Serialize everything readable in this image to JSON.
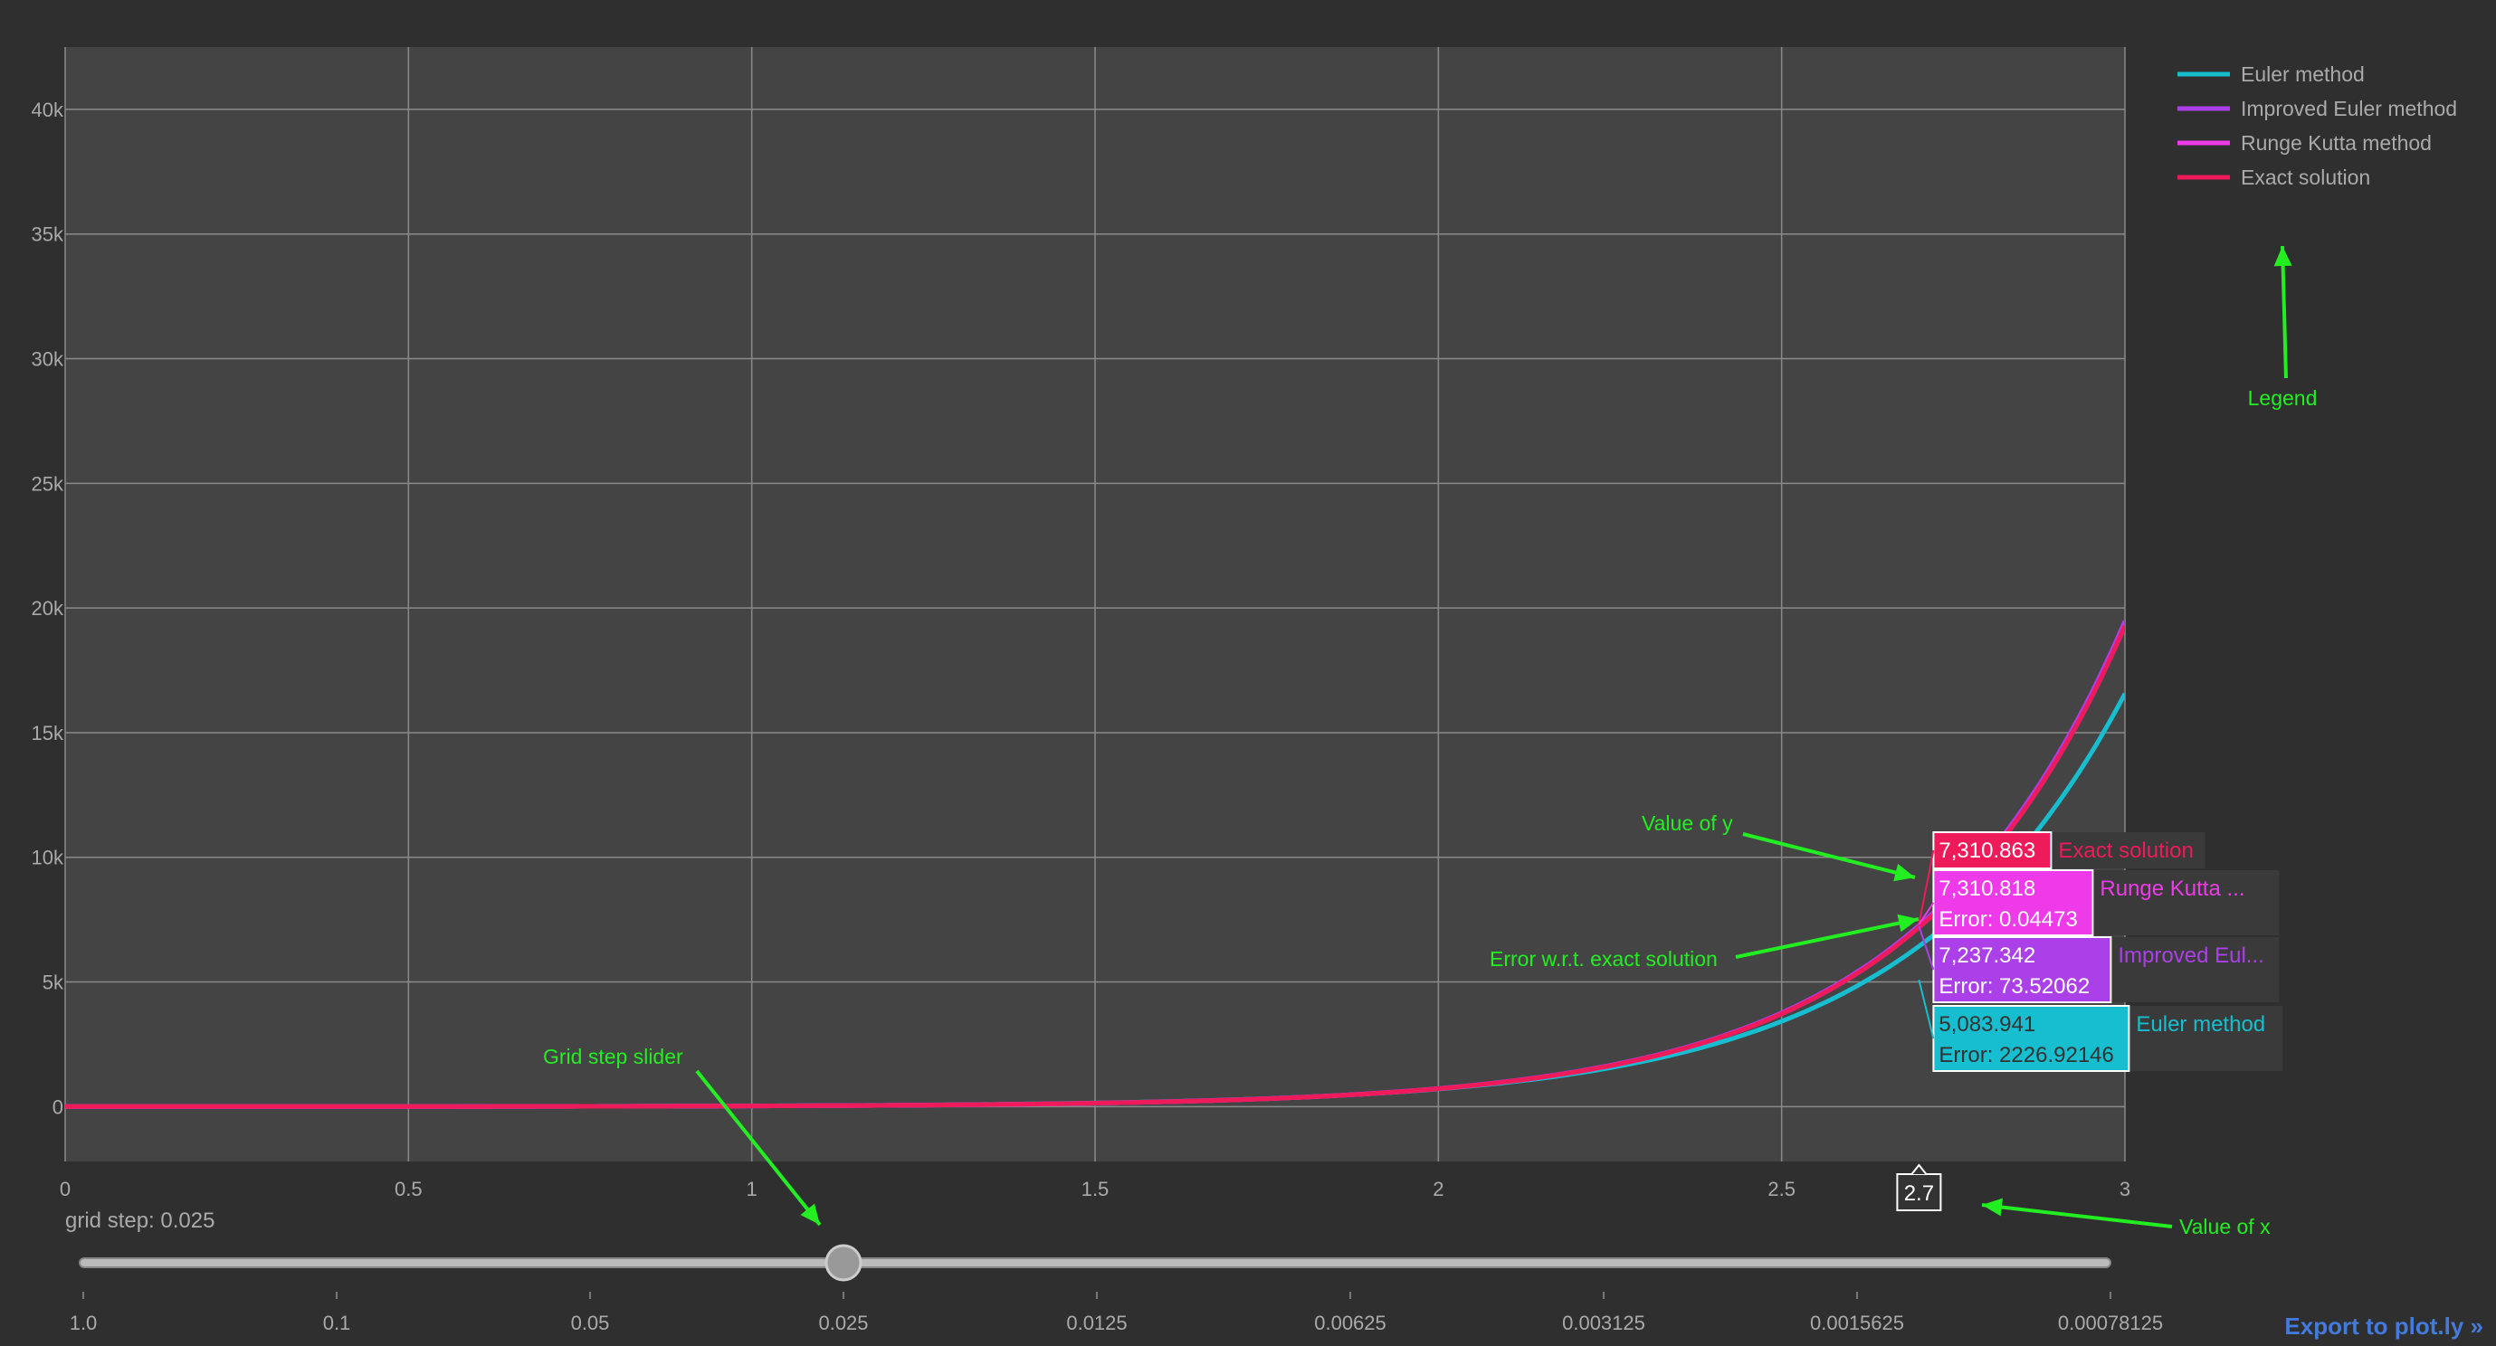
{
  "chart_data": {
    "type": "line",
    "xlim": [
      0,
      3
    ],
    "ylim": [
      -2200,
      42500
    ],
    "x_ticks": [
      "0",
      "0.5",
      "1",
      "1.5",
      "2",
      "2.5",
      "3"
    ],
    "x_tick_values": [
      0,
      0.5,
      1,
      1.5,
      2,
      2.5,
      3
    ],
    "y_ticks": [
      "0",
      "5k",
      "10k",
      "15k",
      "20k",
      "25k",
      "30k",
      "35k",
      "40k"
    ],
    "y_tick_values": [
      0,
      5000,
      10000,
      15000,
      20000,
      25000,
      30000,
      35000,
      40000
    ],
    "grid": true,
    "legend_position": "top-right",
    "series": [
      {
        "name": "Euler method",
        "color": "#17becf",
        "growth": 3.154,
        "base": 1.288
      },
      {
        "name": "Improved Euler method",
        "color": "#ab3fe8",
        "growth": 3.287,
        "base": 1.016
      },
      {
        "name": "Runge Kutta method",
        "color": "#ee3ae8",
        "growth": 3.289,
        "base": 1.0
      },
      {
        "name": "Exact solution",
        "color": "#ee1a5a",
        "growth": 3.289,
        "base": 1.0
      }
    ],
    "hover": {
      "x_label": "2.7",
      "items": [
        {
          "value": "7,310.863",
          "error": "",
          "name": "Exact solution",
          "color": "#ee1a5a",
          "y": 7310.863
        },
        {
          "value": "7,310.818",
          "error": "Error: 0.04473",
          "name": "Runge Kutta ...",
          "color": "#ee3ae8",
          "y": 7310.818
        },
        {
          "value": "7,237.342",
          "error": "Error: 73.52062",
          "name": "Improved Eul...",
          "color": "#ab3fe8",
          "y": 7237.342
        },
        {
          "value": "5,083.941",
          "error": "Error: 2226.92146",
          "name": "Euler method",
          "color": "#17becf",
          "y": 5083.941
        }
      ]
    },
    "annotations": [
      "Legend",
      "Value of y",
      "Error w.r.t. exact solution",
      "Grid step slider",
      "Value of x"
    ]
  },
  "slider": {
    "label": "grid step: 0.025",
    "options": [
      "1.0",
      "0.1",
      "0.05",
      "0.025",
      "0.0125",
      "0.00625",
      "0.003125",
      "0.0015625",
      "0.00078125"
    ],
    "selected_index": 3
  },
  "export_label": "Export to plot.ly »"
}
